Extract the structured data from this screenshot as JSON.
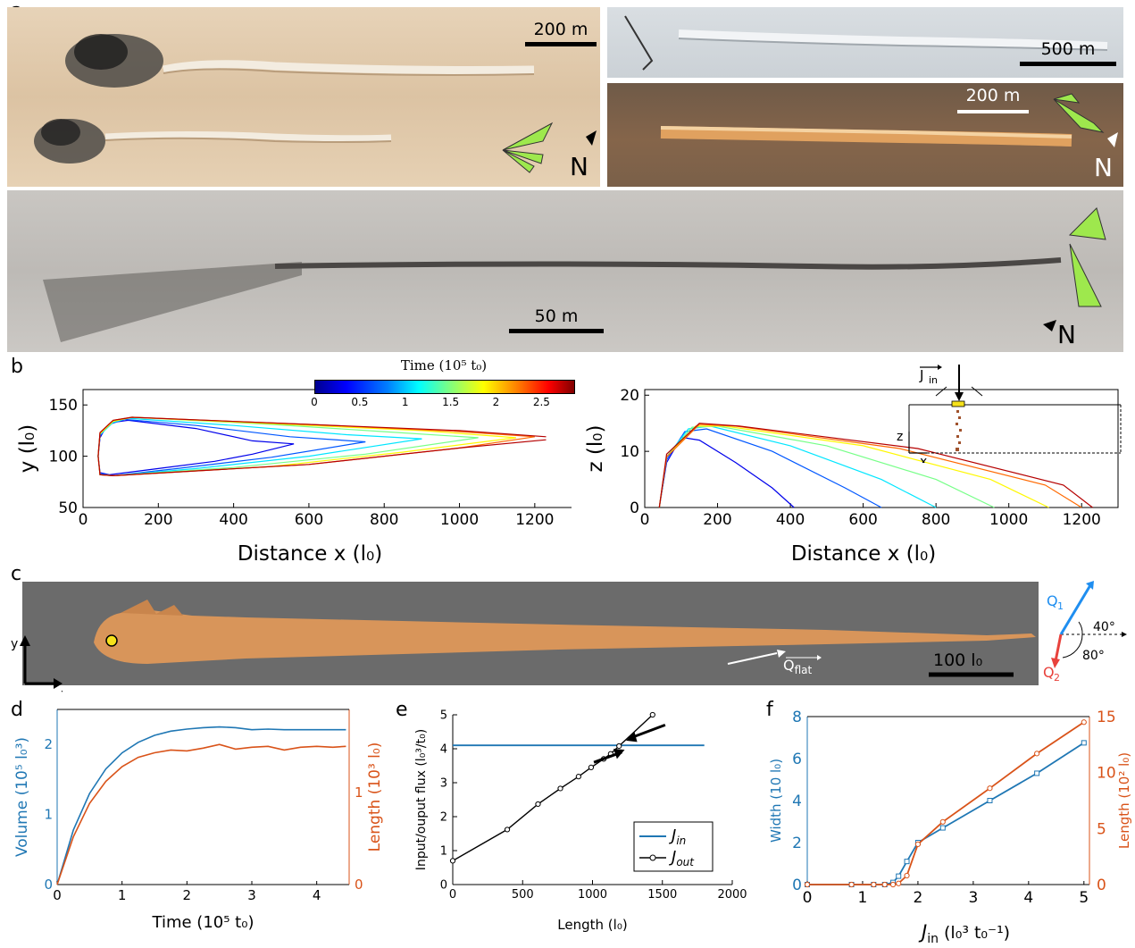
{
  "panels": {
    "a": {
      "letter": "a",
      "photos": [
        {
          "scale_label": "200 m",
          "north_label": "N"
        },
        {
          "scale_label": "500 m"
        },
        {
          "scale_label": "200 m",
          "north_label": "N"
        },
        {
          "scale_label": "50 m",
          "north_label": "N"
        }
      ]
    },
    "b": {
      "letter": "b",
      "colorbar": {
        "title": "Time (10⁵ t₀)",
        "ticks": [
          "0",
          "0.5",
          "1",
          "1.5",
          "2",
          "2.5"
        ],
        "range": [
          0,
          2.85
        ]
      },
      "inset": {
        "jin_label": "J",
        "jin_sub": "in",
        "z_label": "z",
        "x_label": "x"
      }
    },
    "c": {
      "letter": "c",
      "axis_y": "y",
      "axis_x": "x",
      "qflat_label": "Q",
      "qflat_sub": "flat",
      "scale_label": "100 l₀",
      "q1_label": "Q",
      "q1_sub": "1",
      "q2_label": "Q",
      "q2_sub": "2",
      "angle1": "40°",
      "angle2": "80°",
      "colors": {
        "q1": "#1f8ef0",
        "q2": "#e8423c",
        "pile": "#d8955a",
        "bg": "#6b6b6b"
      }
    },
    "d": {
      "letter": "d"
    },
    "e": {
      "letter": "e"
    },
    "f": {
      "letter": "f"
    }
  },
  "chart_data": [
    {
      "id": "b-left",
      "type": "line",
      "xlabel": "Distance x (l₀)",
      "ylabel": "y (l₀)",
      "xlim": [
        0,
        1300
      ],
      "ylim": [
        50,
        165
      ],
      "xticks": [
        0,
        200,
        400,
        600,
        800,
        1000,
        1200
      ],
      "yticks": [
        50,
        100,
        150
      ],
      "series": [
        {
          "t": 0.3,
          "tip": 560,
          "top": [
            [
              40,
              100
            ],
            [
              45,
              118
            ],
            [
              60,
              128
            ],
            [
              80,
              133
            ],
            [
              120,
              135
            ],
            [
              300,
              127
            ],
            [
              450,
              115
            ],
            [
              560,
              112
            ]
          ],
          "bot": [
            [
              40,
              100
            ],
            [
              45,
              84
            ],
            [
              70,
              82
            ],
            [
              200,
              88
            ],
            [
              350,
              95
            ],
            [
              450,
              102
            ],
            [
              560,
              112
            ]
          ]
        },
        {
          "t": 0.6,
          "tip": 750,
          "top": [
            [
              40,
              100
            ],
            [
              45,
              120
            ],
            [
              70,
              131
            ],
            [
              110,
              136
            ],
            [
              300,
              130
            ],
            [
              550,
              119
            ],
            [
              750,
              114
            ]
          ],
          "bot": [
            [
              40,
              100
            ],
            [
              45,
              83
            ],
            [
              80,
              81
            ],
            [
              250,
              88
            ],
            [
              500,
              99
            ],
            [
              750,
              114
            ]
          ]
        },
        {
          "t": 1.0,
          "tip": 900,
          "top": [
            [
              40,
              100
            ],
            [
              45,
              121
            ],
            [
              80,
              133
            ],
            [
              120,
              137
            ],
            [
              400,
              130
            ],
            [
              700,
              121
            ],
            [
              900,
              117
            ]
          ],
          "bot": [
            [
              40,
              100
            ],
            [
              45,
              82
            ],
            [
              80,
              81
            ],
            [
              300,
              88
            ],
            [
              600,
              100
            ],
            [
              900,
              117
            ]
          ]
        },
        {
          "t": 1.4,
          "tip": 1050,
          "top": [
            [
              40,
              100
            ],
            [
              45,
              122
            ],
            [
              80,
              134
            ],
            [
              130,
              138
            ],
            [
              500,
              131
            ],
            [
              800,
              124
            ],
            [
              1050,
              118
            ]
          ],
          "bot": [
            [
              40,
              100
            ],
            [
              45,
              82
            ],
            [
              80,
              81
            ],
            [
              400,
              89
            ],
            [
              750,
              102
            ],
            [
              1050,
              118
            ]
          ]
        },
        {
          "t": 1.8,
          "tip": 1150,
          "top": [
            [
              40,
              100
            ],
            [
              45,
              122
            ],
            [
              80,
              134
            ],
            [
              130,
              138
            ],
            [
              600,
              130
            ],
            [
              900,
              125
            ],
            [
              1150,
              118
            ]
          ],
          "bot": [
            [
              40,
              100
            ],
            [
              45,
              82
            ],
            [
              80,
              81
            ],
            [
              500,
              90
            ],
            [
              850,
              104
            ],
            [
              1150,
              118
            ]
          ]
        },
        {
          "t": 2.2,
          "tip": 1200,
          "top": [
            [
              40,
              100
            ],
            [
              45,
              123
            ],
            [
              80,
              135
            ],
            [
              130,
              138
            ],
            [
              600,
              131
            ],
            [
              1000,
              124
            ],
            [
              1200,
              119
            ]
          ],
          "bot": [
            [
              40,
              100
            ],
            [
              45,
              82
            ],
            [
              80,
              81
            ],
            [
              600,
              92
            ],
            [
              1000,
              108
            ],
            [
              1200,
              119
            ]
          ]
        },
        {
          "t": 2.7,
          "tip": 1230,
          "top": [
            [
              40,
              100
            ],
            [
              45,
              123
            ],
            [
              80,
              135
            ],
            [
              130,
              138
            ],
            [
              600,
              131
            ],
            [
              1000,
              125
            ],
            [
              1230,
              119
            ]
          ],
          "bot": [
            [
              40,
              100
            ],
            [
              45,
              82
            ],
            [
              80,
              81
            ],
            [
              600,
              92
            ],
            [
              1000,
              108
            ],
            [
              1230,
              116
            ]
          ]
        }
      ]
    },
    {
      "id": "b-right",
      "type": "line",
      "xlabel": "Distance x (l₀)",
      "ylabel": "z (l₀)",
      "xlim": [
        0,
        1300
      ],
      "ylim": [
        0,
        21
      ],
      "xticks": [
        0,
        200,
        400,
        600,
        800,
        1000,
        1200
      ],
      "yticks": [
        0,
        10,
        20
      ],
      "series": [
        {
          "t": 0.3,
          "points": [
            [
              40,
              0
            ],
            [
              60,
              8
            ],
            [
              100,
              12.5
            ],
            [
              150,
              12
            ],
            [
              250,
              8
            ],
            [
              350,
              3.5
            ],
            [
              410,
              0
            ]
          ]
        },
        {
          "t": 0.6,
          "points": [
            [
              40,
              0
            ],
            [
              60,
              8.5
            ],
            [
              110,
              13.5
            ],
            [
              170,
              14
            ],
            [
              350,
              10
            ],
            [
              550,
              3.5
            ],
            [
              650,
              0
            ]
          ]
        },
        {
          "t": 1.0,
          "points": [
            [
              40,
              0
            ],
            [
              60,
              9
            ],
            [
              120,
              14
            ],
            [
              180,
              14.5
            ],
            [
              400,
              11
            ],
            [
              650,
              5
            ],
            [
              800,
              0
            ]
          ]
        },
        {
          "t": 1.4,
          "points": [
            [
              40,
              0
            ],
            [
              60,
              9
            ],
            [
              130,
              14.3
            ],
            [
              200,
              14.5
            ],
            [
              500,
              11
            ],
            [
              800,
              5
            ],
            [
              960,
              0
            ]
          ]
        },
        {
          "t": 1.8,
          "points": [
            [
              40,
              0
            ],
            [
              60,
              9
            ],
            [
              140,
              14.5
            ],
            [
              220,
              14.5
            ],
            [
              600,
              11
            ],
            [
              950,
              5
            ],
            [
              1110,
              0
            ]
          ]
        },
        {
          "t": 2.2,
          "points": [
            [
              40,
              0
            ],
            [
              60,
              9
            ],
            [
              150,
              14.8
            ],
            [
              250,
              14.5
            ],
            [
              700,
              10.5
            ],
            [
              1100,
              4
            ],
            [
              1200,
              0
            ]
          ]
        },
        {
          "t": 2.7,
          "points": [
            [
              40,
              0
            ],
            [
              60,
              9.5
            ],
            [
              150,
              15
            ],
            [
              260,
              14.5
            ],
            [
              750,
              10.5
            ],
            [
              1150,
              4
            ],
            [
              1230,
              0
            ]
          ]
        }
      ]
    },
    {
      "id": "d",
      "type": "line",
      "xlabel": "Time (10⁵ t₀)",
      "ylabel_left": "Volume (10⁵ l₀³)",
      "ylabel_right": "Length (10³ l₀)",
      "xlim": [
        0,
        4.5
      ],
      "ylim_left": [
        0,
        2.5
      ],
      "ylim_right": [
        0,
        1.9
      ],
      "xticks": [
        0,
        1,
        2,
        3,
        4
      ],
      "yticks_left": [
        0,
        1,
        2
      ],
      "yticks_right": [
        0,
        1
      ],
      "series": [
        {
          "name": "Volume",
          "axis": "left",
          "color": "#1f77b4",
          "x": [
            0,
            0.25,
            0.5,
            0.75,
            1.0,
            1.25,
            1.5,
            1.75,
            2.0,
            2.25,
            2.5,
            2.75,
            3.0,
            3.25,
            3.5,
            3.75,
            4.0,
            4.25,
            4.45
          ],
          "y": [
            0,
            0.78,
            1.3,
            1.65,
            1.88,
            2.03,
            2.13,
            2.19,
            2.22,
            2.24,
            2.25,
            2.24,
            2.21,
            2.22,
            2.21,
            2.21,
            2.21,
            2.21,
            2.21
          ]
        },
        {
          "name": "Length",
          "axis": "right",
          "color": "#d95319",
          "x": [
            0,
            0.25,
            0.5,
            0.75,
            1.0,
            1.25,
            1.5,
            1.75,
            2.0,
            2.25,
            2.5,
            2.75,
            3.0,
            3.25,
            3.5,
            3.75,
            4.0,
            4.25,
            4.45
          ],
          "y": [
            0,
            0.52,
            0.88,
            1.12,
            1.28,
            1.38,
            1.43,
            1.46,
            1.45,
            1.48,
            1.52,
            1.47,
            1.49,
            1.5,
            1.46,
            1.49,
            1.5,
            1.49,
            1.5
          ]
        }
      ]
    },
    {
      "id": "e",
      "type": "line",
      "xlabel": "Length (l₀)",
      "ylabel": "Input/ouput flux (l₀³/t₀)",
      "xlim": [
        0,
        2000
      ],
      "ylim": [
        0,
        5
      ],
      "xticks": [
        0,
        500,
        1000,
        1500,
        2000
      ],
      "yticks": [
        0,
        1,
        2,
        3,
        4,
        5
      ],
      "series": [
        {
          "name": "J_in",
          "color": "#1f77b4",
          "x": [
            0,
            1800
          ],
          "y": [
            4.1,
            4.1
          ]
        },
        {
          "name": "J_out",
          "color": "#000000",
          "x": [
            0,
            390,
            610,
            770,
            900,
            990,
            1080,
            1130,
            1190,
            1430
          ],
          "y": [
            0.7,
            1.62,
            2.37,
            2.83,
            3.18,
            3.45,
            3.7,
            3.85,
            4.08,
            5.0
          ]
        }
      ],
      "legend": {
        "entries": [
          "J",
          "J"
        ],
        "subs": [
          "in",
          "out"
        ],
        "placement": "bottom-right"
      }
    },
    {
      "id": "f",
      "type": "line",
      "xlabel": "J",
      "xlabel_sub": "in",
      "xlabel_units": "(l₀³ t₀⁻¹)",
      "ylabel_left": "Width (10 l₀)",
      "ylabel_right": "Length (10² l₀)",
      "xlim": [
        0,
        5.1
      ],
      "ylim_left": [
        0,
        8
      ],
      "ylim_right": [
        0,
        15
      ],
      "xticks": [
        0,
        1,
        2,
        3,
        4,
        5
      ],
      "yticks_left": [
        0,
        2,
        4,
        6,
        8
      ],
      "yticks_right": [
        0,
        5,
        10,
        15
      ],
      "series": [
        {
          "name": "Width",
          "axis": "left",
          "color": "#1f77b4",
          "marker": "square",
          "x": [
            0,
            0.8,
            1.2,
            1.4,
            1.55,
            1.65,
            1.8,
            2.0,
            2.45,
            3.3,
            4.15,
            5.0
          ],
          "y": [
            0,
            0,
            0,
            0,
            0.1,
            0.4,
            1.1,
            2.0,
            2.7,
            4.0,
            5.3,
            6.75
          ]
        },
        {
          "name": "Length",
          "axis": "right",
          "color": "#d95319",
          "marker": "circle",
          "x": [
            0,
            0.8,
            1.2,
            1.4,
            1.55,
            1.65,
            1.8,
            2.0,
            2.45,
            3.3,
            4.15,
            5.0
          ],
          "y": [
            0,
            0,
            0,
            0,
            0,
            0.1,
            0.8,
            3.6,
            5.6,
            8.6,
            11.7,
            14.5
          ]
        }
      ]
    }
  ]
}
